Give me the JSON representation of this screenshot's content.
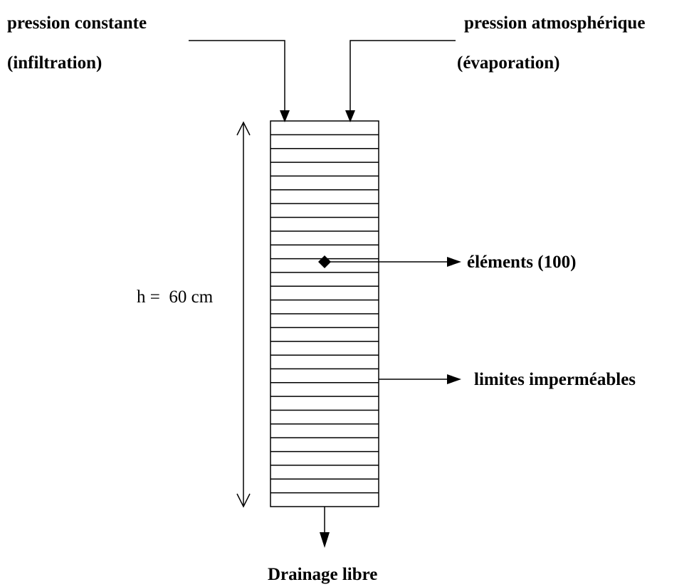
{
  "top_left": {
    "title": "pression constante",
    "subtitle": "(infiltration)"
  },
  "top_right": {
    "title": "pression atmosphérique",
    "subtitle": "(évaporation)"
  },
  "height_label": "h =  60 cm",
  "elements_label": "éléments (100)",
  "boundaries_label": "limites imperméables",
  "bottom_label": "Drainage libre"
}
